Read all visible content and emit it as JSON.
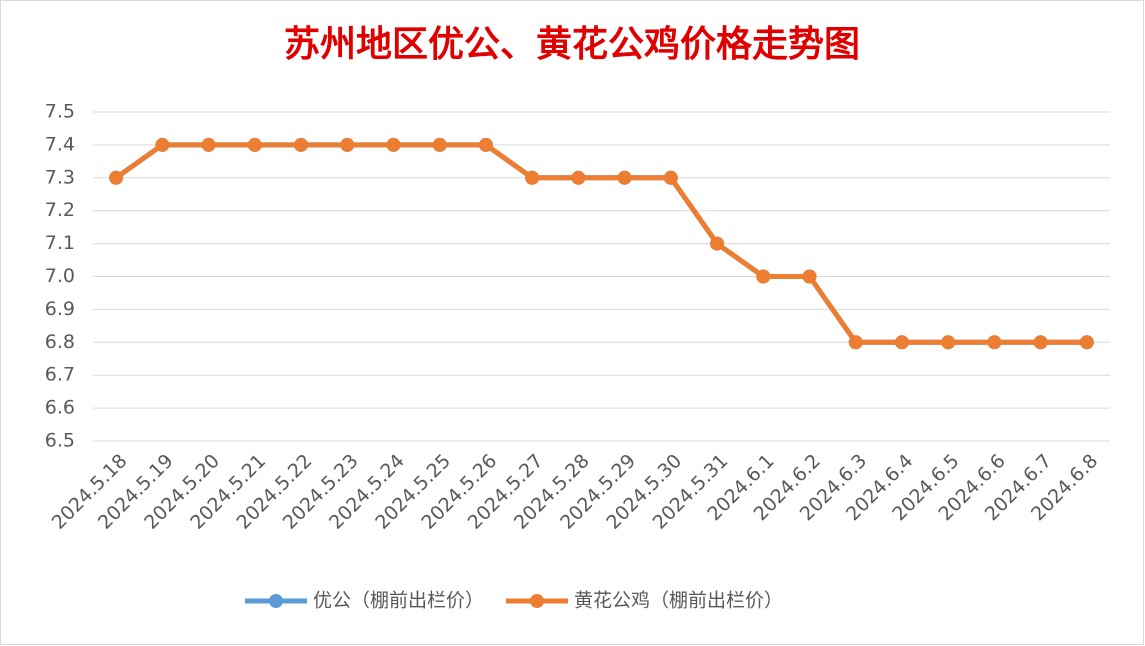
{
  "chart_data": {
    "type": "line",
    "title": "苏州地区优公、黄花公鸡价格走势图",
    "categories": [
      "2024.5.18",
      "2024.5.19",
      "2024.5.20",
      "2024.5.21",
      "2024.5.22",
      "2024.5.23",
      "2024.5.24",
      "2024.5.25",
      "2024.5.26",
      "2024.5.27",
      "2024.5.28",
      "2024.5.29",
      "2024.5.30",
      "2024.5.31",
      "2024.6.1",
      "2024.6.2",
      "2024.6.3",
      "2024.6.4",
      "2024.6.5",
      "2024.6.6",
      "2024.6.7",
      "2024.6.8"
    ],
    "series": [
      {
        "name": "优公（棚前出栏价）",
        "color": "#5b9bd5",
        "values": [
          7.3,
          7.4,
          7.4,
          7.4,
          7.4,
          7.4,
          7.4,
          7.4,
          7.4,
          7.3,
          7.3,
          7.3,
          7.3,
          7.1,
          7.0,
          7.0,
          6.8,
          6.8,
          6.8,
          6.8,
          6.8,
          6.8
        ]
      },
      {
        "name": "黄花公鸡（棚前出栏价）",
        "color": "#ed7d31",
        "values": [
          7.3,
          7.4,
          7.4,
          7.4,
          7.4,
          7.4,
          7.4,
          7.4,
          7.4,
          7.3,
          7.3,
          7.3,
          7.3,
          7.1,
          7.0,
          7.0,
          6.8,
          6.8,
          6.8,
          6.8,
          6.8,
          6.8
        ]
      }
    ],
    "ylim": [
      6.5,
      7.5
    ],
    "yticks": [
      6.5,
      6.6,
      6.7,
      6.8,
      6.9,
      {
        "value": 7,
        "label": "7.0"
      },
      7.1,
      7.2,
      7.3,
      7.4,
      7.5
    ],
    "grid": true,
    "legend": "bottom"
  }
}
